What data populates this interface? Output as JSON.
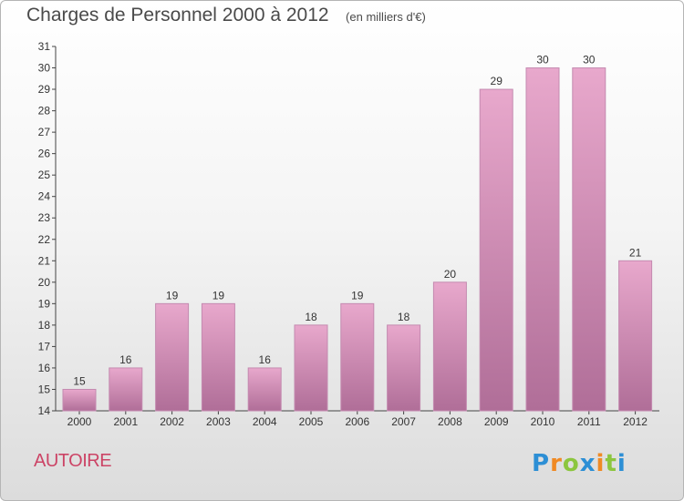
{
  "header": {
    "title": "Charges de Personnel 2000 à 2012",
    "subtitle": "(en milliers d'€)"
  },
  "footer": {
    "commune": "AUTOIRE",
    "logo_text": "Proxiti"
  },
  "colors": {
    "bar_top": "#e8a8cc",
    "bar_bottom": "#b06e98",
    "bar_edge": "#c48ab0",
    "axis": "#444444",
    "text": "#333333",
    "commune": "#cc4466"
  },
  "chart_data": {
    "type": "bar",
    "categories": [
      "2000",
      "2001",
      "2002",
      "2003",
      "2004",
      "2005",
      "2006",
      "2007",
      "2008",
      "2009",
      "2010",
      "2011",
      "2012"
    ],
    "values": [
      15,
      16,
      19,
      19,
      16,
      18,
      19,
      18,
      20,
      29,
      30,
      30,
      21
    ],
    "data_labels": [
      "15",
      "16",
      "19",
      "19",
      "16",
      "18",
      "19",
      "18",
      "20",
      "29",
      "30",
      "30",
      "21"
    ],
    "title": "Charges de Personnel 2000 à 2012",
    "subtitle": "(en milliers d'€)",
    "xlabel": "",
    "ylabel": "",
    "ylim": [
      14,
      31
    ],
    "yticks": [
      "14",
      "15",
      "16",
      "17",
      "18",
      "19",
      "20",
      "21",
      "22",
      "23",
      "24",
      "25",
      "26",
      "27",
      "28",
      "29",
      "30",
      "31"
    ],
    "grid": false,
    "legend": "none"
  }
}
